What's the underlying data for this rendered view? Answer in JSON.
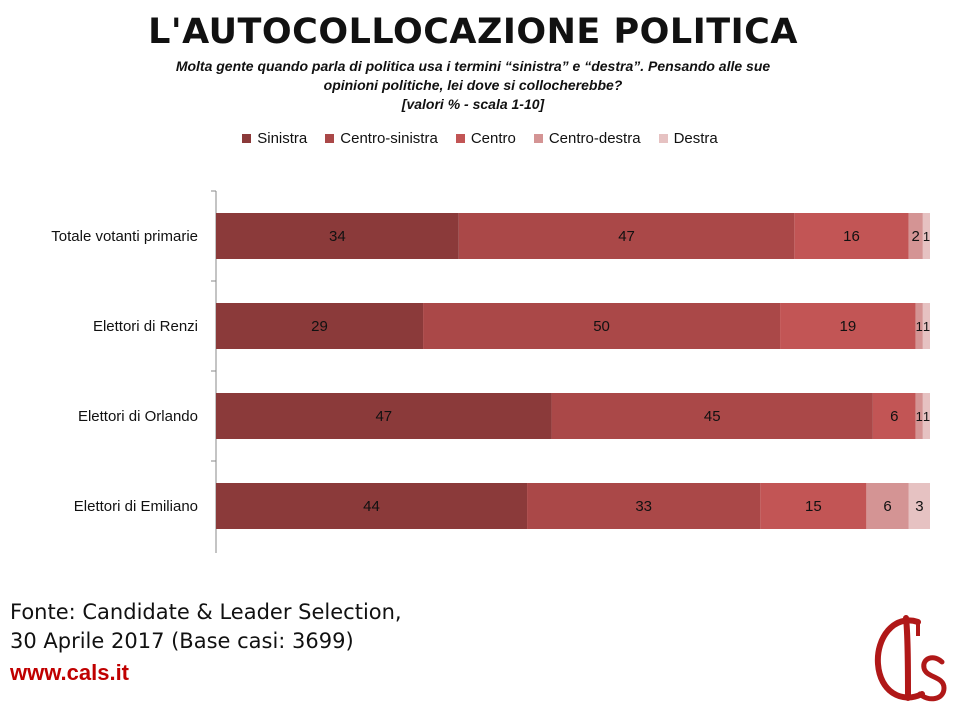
{
  "header": {
    "title": "L'AUTOCOLLOCAZIONE POLITICA",
    "subtitle_line1": "Molta gente quando parla di politica usa i termini “sinistra” e “destra”. Pensando alle sue",
    "subtitle_line2": "opinioni politiche, lei dove si collocherebbe?",
    "subtitle_line3": "[valori % - scala 1-10]"
  },
  "chart_data": {
    "type": "bar",
    "orientation": "horizontal",
    "stacked": true,
    "categories": [
      "Totale votanti primarie",
      "Elettori di Renzi",
      "Elettori di Orlando",
      "Elettori di Emiliano"
    ],
    "series": [
      {
        "name": "Sinistra",
        "color": "#8b3a3a",
        "values": [
          34,
          29,
          47,
          44
        ]
      },
      {
        "name": "Centro-sinistra",
        "color": "#aa4848",
        "values": [
          47,
          50,
          45,
          33
        ]
      },
      {
        "name": "Centro",
        "color": "#c25555",
        "values": [
          16,
          19,
          6,
          15
        ]
      },
      {
        "name": "Centro-destra",
        "color": "#d49494",
        "values": [
          2,
          1,
          1,
          6
        ]
      },
      {
        "name": "Destra",
        "color": "#e6c2c2",
        "values": [
          1,
          1,
          1,
          3
        ]
      }
    ],
    "legend_position": "top",
    "grid": false,
    "data_labels": true
  },
  "footer": {
    "source_line1": "Fonte: Candidate & Leader Selection,",
    "source_line2": "30 Aprile 2017 (Base casi: 3699)",
    "website": "www.cals.it",
    "logo_text": "Cls"
  }
}
